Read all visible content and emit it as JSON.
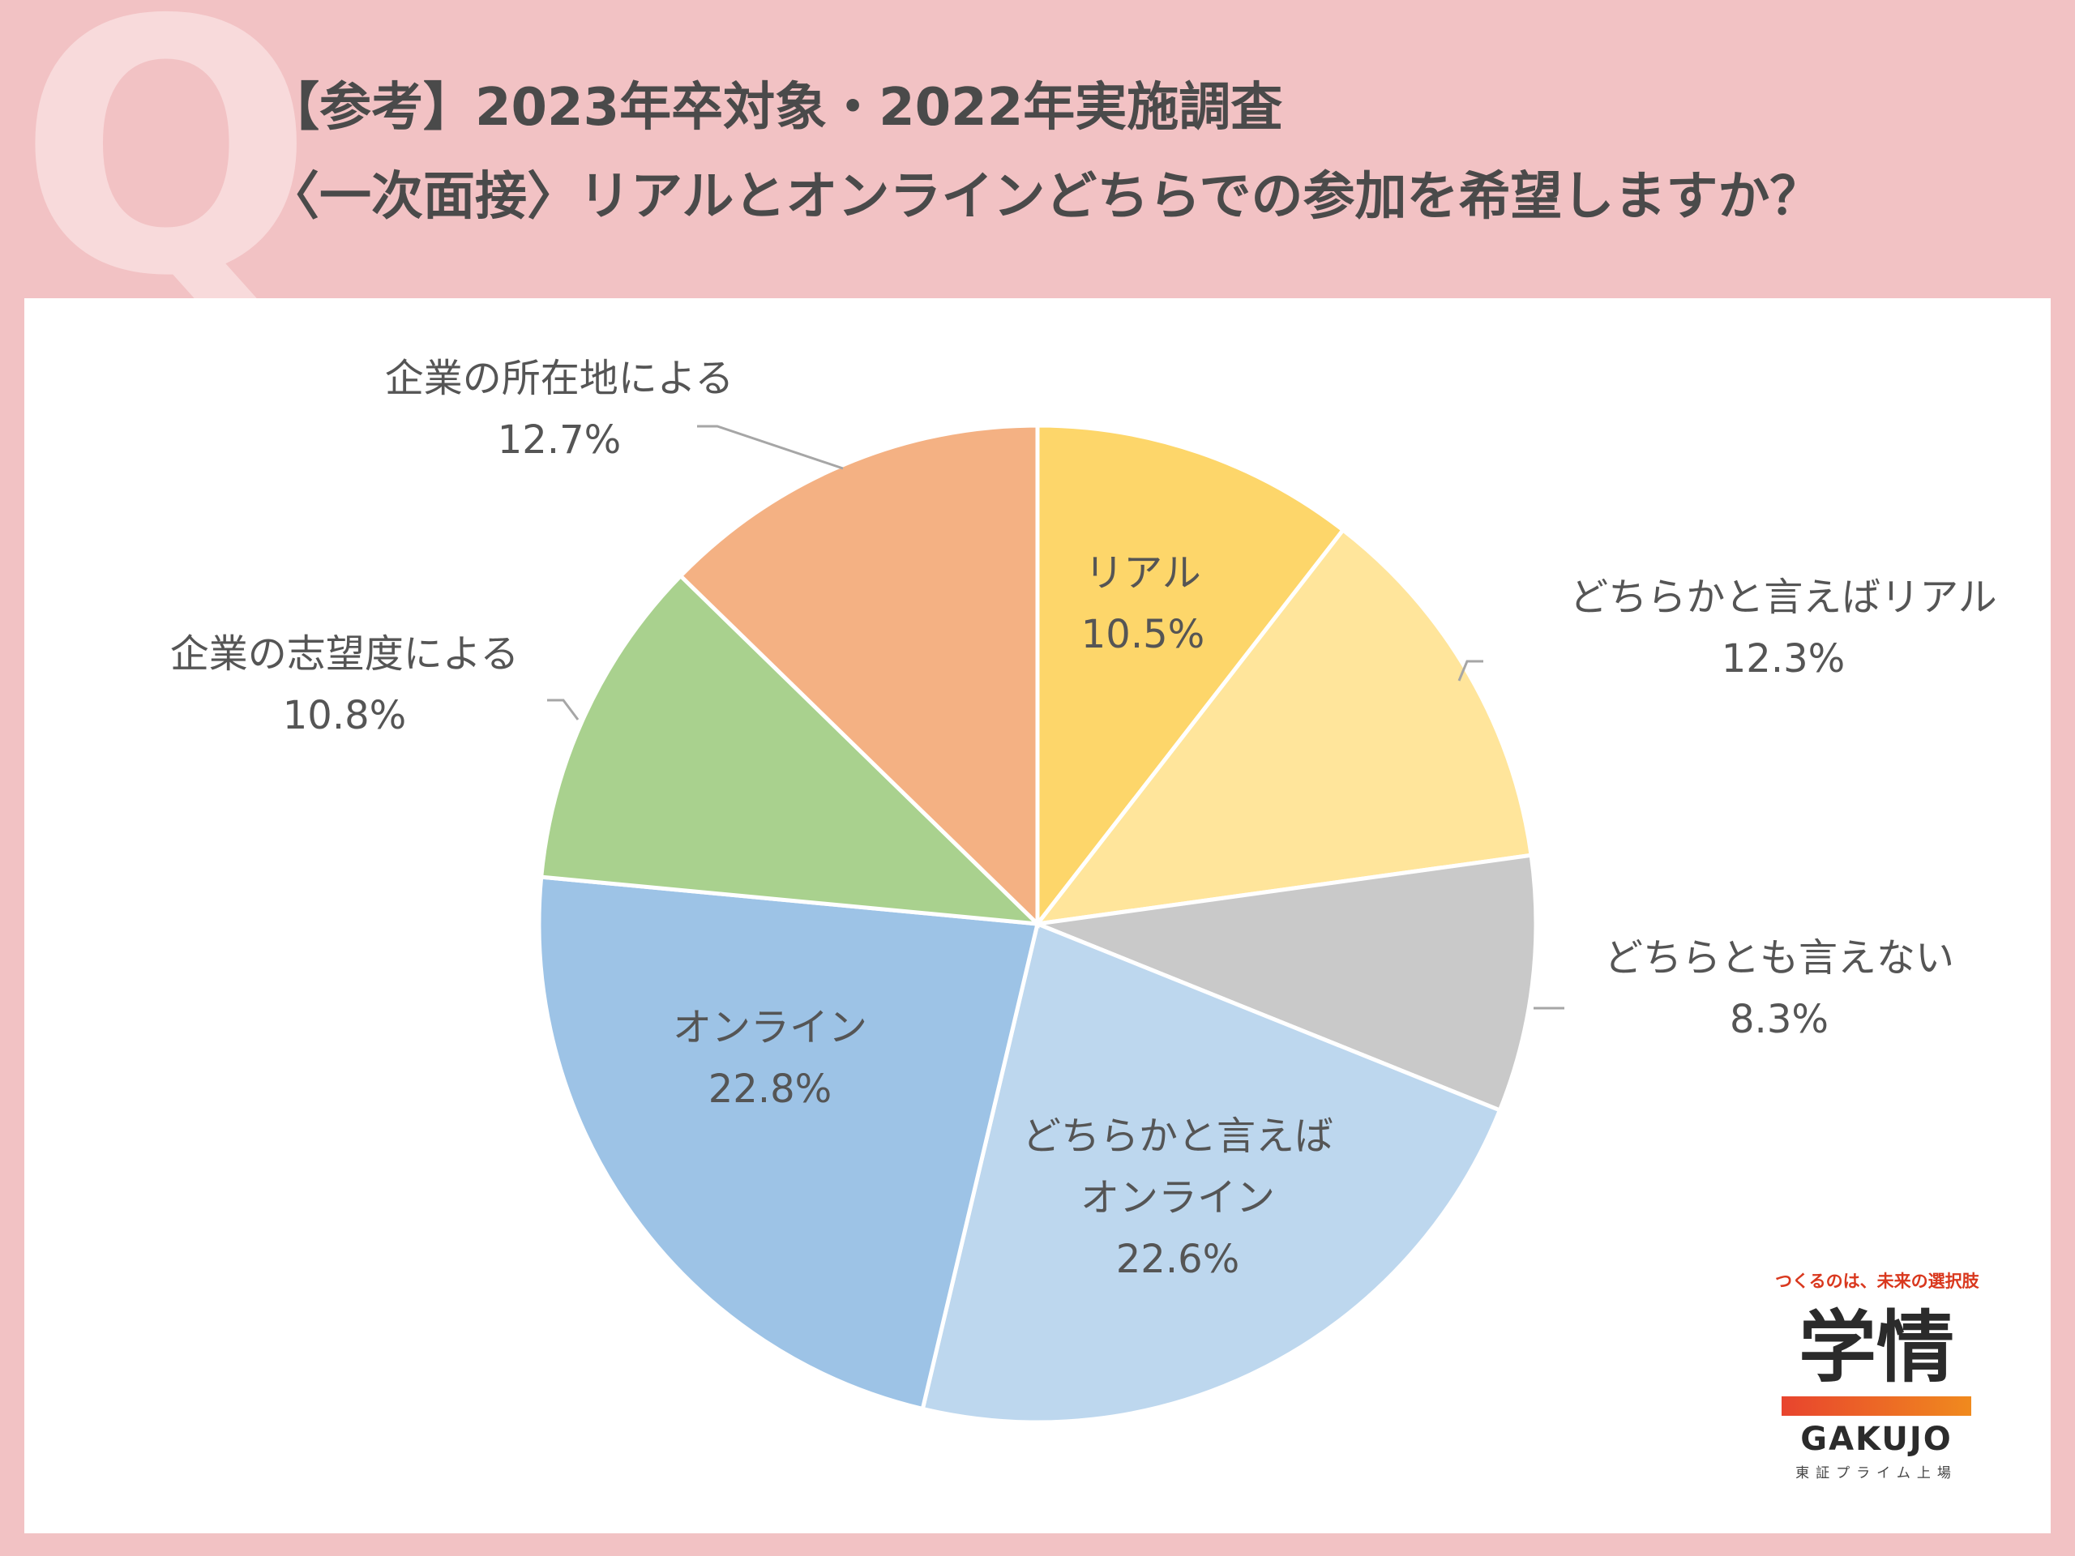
{
  "header": {
    "q_mark": "Q",
    "title_line1": "【参考】2023年卒対象・2022年実施調査",
    "title_line2": "〈一次面接〉リアルとオンラインどちらでの参加を希望しますか？"
  },
  "chart_data": {
    "type": "pie",
    "unit": "%",
    "start_angle_deg": 0,
    "direction": "clockwise",
    "slices": [
      {
        "name": "リアル",
        "value": 10.5,
        "label": "10.5%",
        "color": "#FDD66A"
      },
      {
        "name": "どちらかと言えばリアル",
        "value": 12.3,
        "label": "12.3%",
        "color": "#FFE59B"
      },
      {
        "name": "どちらとも言えない",
        "value": 8.3,
        "label": "8.3%",
        "color": "#C9C9C9"
      },
      {
        "name": "どちらかと言えばオンライン",
        "value": 22.6,
        "label": "22.6%",
        "color": "#BDD7EE"
      },
      {
        "name": "オンライン",
        "value": 22.8,
        "label": "22.8%",
        "color": "#9DC3E6"
      },
      {
        "name": "企業の志望度による",
        "value": 10.8,
        "label": "10.8%",
        "color": "#A9D18E"
      },
      {
        "name": "企業の所在地による",
        "value": 12.7,
        "label": "12.7%",
        "color": "#F4B183"
      }
    ],
    "label_lines": {
      "リアル": [
        "リアル"
      ],
      "どちらかと言えばリアル": [
        "どちらかと言えばリアル"
      ],
      "どちらとも言えない": [
        "どちらとも言えない"
      ],
      "どちらかと言えばオンライン": [
        "どちらかと言えば",
        "オンライン"
      ],
      "オンライン": [
        "オンライン"
      ],
      "企業の志望度による": [
        "企業の志望度による"
      ],
      "企業の所在地による": [
        "企業の所在地による"
      ]
    }
  },
  "logo": {
    "tagline": "つくるのは、未来の選択肢",
    "mark": "学情",
    "english": "GAKUJO",
    "sub": "東証プライム上場",
    "bar_colors": [
      "#E8442E",
      "#F08A1E"
    ]
  }
}
